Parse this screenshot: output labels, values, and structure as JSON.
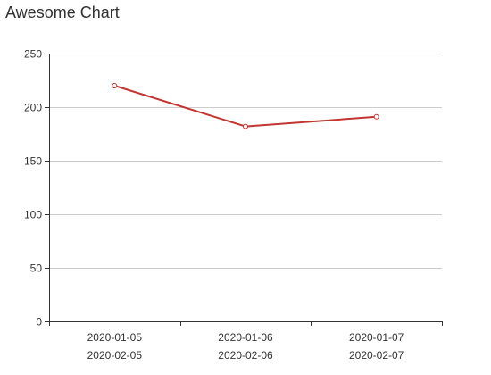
{
  "chart_data": {
    "type": "line",
    "title": "Awesome Chart",
    "categories": [
      [
        "2020-01-05",
        "2020-02-05"
      ],
      [
        "2020-01-06",
        "2020-02-06"
      ],
      [
        "2020-01-07",
        "2020-02-07"
      ]
    ],
    "series": [
      {
        "values": [
          220,
          182,
          191
        ],
        "color": "#c23531"
      }
    ],
    "yticks": [
      0,
      50,
      100,
      150,
      200,
      250
    ],
    "ylim": [
      0,
      250
    ],
    "grid": "horizontal"
  }
}
